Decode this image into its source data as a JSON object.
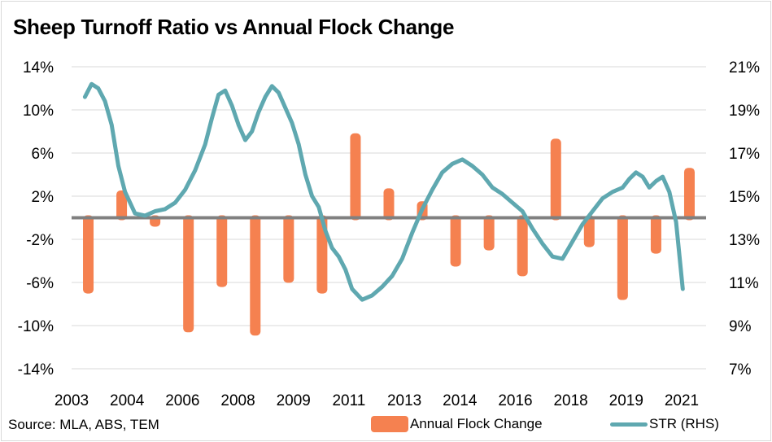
{
  "chart_data": {
    "type": "bar+line",
    "title": "Sheep Turnoff Ratio vs Annual Flock Change",
    "source": "Source: MLA, ABS, TEM",
    "x_tick_labels": [
      "2003",
      "2004",
      "2006",
      "2008",
      "2009",
      "2011",
      "2013",
      "2014",
      "2016",
      "2018",
      "2019",
      "2021"
    ],
    "x_range": [
      2002.5,
      2021.5
    ],
    "left_axis": {
      "ylim": [
        -14,
        14
      ],
      "ticks": [
        14,
        10,
        6,
        2,
        -2,
        -6,
        -10,
        -14
      ],
      "tick_labels": [
        "14%",
        "10%",
        "6%",
        "2%",
        "-2%",
        "-6%",
        "-10%",
        "-14%"
      ]
    },
    "right_axis": {
      "ylim": [
        7,
        21
      ],
      "ticks": [
        21,
        19,
        17,
        15,
        13,
        11,
        9,
        7
      ],
      "tick_labels": [
        "21%",
        "19%",
        "17%",
        "15%",
        "13%",
        "11%",
        "9%",
        "7%"
      ]
    },
    "grid": true,
    "zero_line": true,
    "legend_position": "bottom",
    "series": [
      {
        "name": "Annual Flock Change",
        "type": "bar",
        "axis": "left",
        "color": "#f58150",
        "x": [
          2003,
          2004,
          2005,
          2006,
          2007,
          2008,
          2009,
          2010,
          2011,
          2012,
          2013,
          2014,
          2015,
          2016,
          2017,
          2018,
          2019,
          2020,
          2021
        ],
        "values": [
          -6.8,
          2.3,
          -0.6,
          -10.4,
          -6.2,
          -10.7,
          -5.8,
          -6.8,
          7.6,
          2.5,
          1.3,
          -4.3,
          -2.8,
          -5.2,
          7.1,
          -2.5,
          -7.4,
          -3.1,
          4.4
        ]
      },
      {
        "name": "STR (RHS)",
        "type": "line",
        "axis": "right",
        "color": "#5fa8b0",
        "x": [
          2002.9,
          2003.1,
          2003.3,
          2003.5,
          2003.7,
          2003.9,
          2004.1,
          2004.4,
          2004.7,
          2005.0,
          2005.3,
          2005.6,
          2005.9,
          2006.2,
          2006.5,
          2006.7,
          2006.9,
          2007.1,
          2007.3,
          2007.5,
          2007.7,
          2007.9,
          2008.1,
          2008.3,
          2008.5,
          2008.7,
          2008.9,
          2009.1,
          2009.3,
          2009.5,
          2009.7,
          2009.9,
          2010.1,
          2010.3,
          2010.5,
          2010.7,
          2010.9,
          2011.2,
          2011.5,
          2011.8,
          2012.1,
          2012.4,
          2012.7,
          2013.0,
          2013.3,
          2013.6,
          2013.9,
          2014.2,
          2014.5,
          2014.8,
          2015.1,
          2015.4,
          2015.7,
          2016.0,
          2016.3,
          2016.6,
          2016.9,
          2017.2,
          2017.5,
          2017.8,
          2018.1,
          2018.4,
          2018.7,
          2019.0,
          2019.2,
          2019.4,
          2019.6,
          2019.8,
          2020.0,
          2020.2,
          2020.4,
          2020.6,
          2020.8
        ],
        "values": [
          19.6,
          20.2,
          20.0,
          19.4,
          18.3,
          16.4,
          15.2,
          14.2,
          14.1,
          14.3,
          14.4,
          14.7,
          15.3,
          16.2,
          17.4,
          18.6,
          19.7,
          19.9,
          19.2,
          18.3,
          17.6,
          18.0,
          18.9,
          19.6,
          20.1,
          19.8,
          19.1,
          18.4,
          17.4,
          16.0,
          15.0,
          14.5,
          13.4,
          12.6,
          12.2,
          11.6,
          10.7,
          10.2,
          10.4,
          10.8,
          11.3,
          12.1,
          13.3,
          14.4,
          15.3,
          16.1,
          16.5,
          16.7,
          16.4,
          16.0,
          15.4,
          15.1,
          14.7,
          14.3,
          13.5,
          12.8,
          12.2,
          12.1,
          12.9,
          13.7,
          14.3,
          14.9,
          15.2,
          15.4,
          15.8,
          16.1,
          15.9,
          15.4,
          15.7,
          15.9,
          15.2,
          13.8,
          10.7
        ]
      }
    ]
  }
}
